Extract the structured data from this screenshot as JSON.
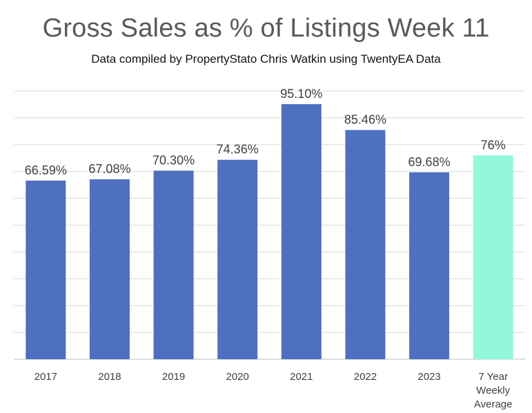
{
  "chart_data": {
    "type": "bar",
    "title": "Gross Sales as % of Listings Week 11",
    "subtitle": "Data compiled by PropertyStato Chris Watkin using TwentyEA Data",
    "categories": [
      "2017",
      "2018",
      "2019",
      "2020",
      "2021",
      "2022",
      "2023",
      [
        "7 Year",
        "Weekly",
        "Average"
      ]
    ],
    "values": [
      66.59,
      67.08,
      70.3,
      74.36,
      95.1,
      85.46,
      69.68,
      76
    ],
    "data_labels": [
      "66.59%",
      "67.08%",
      "70.30%",
      "74.36%",
      "95.10%",
      "85.46%",
      "69.68%",
      "76%"
    ],
    "bar_colors": [
      "#4e70be",
      "#4e70be",
      "#4e70be",
      "#4e70be",
      "#4e70be",
      "#4e70be",
      "#4e70be",
      "#93f7dc"
    ],
    "ylim": [
      0,
      100
    ],
    "grid": true,
    "xlabel": "",
    "ylabel": ""
  }
}
